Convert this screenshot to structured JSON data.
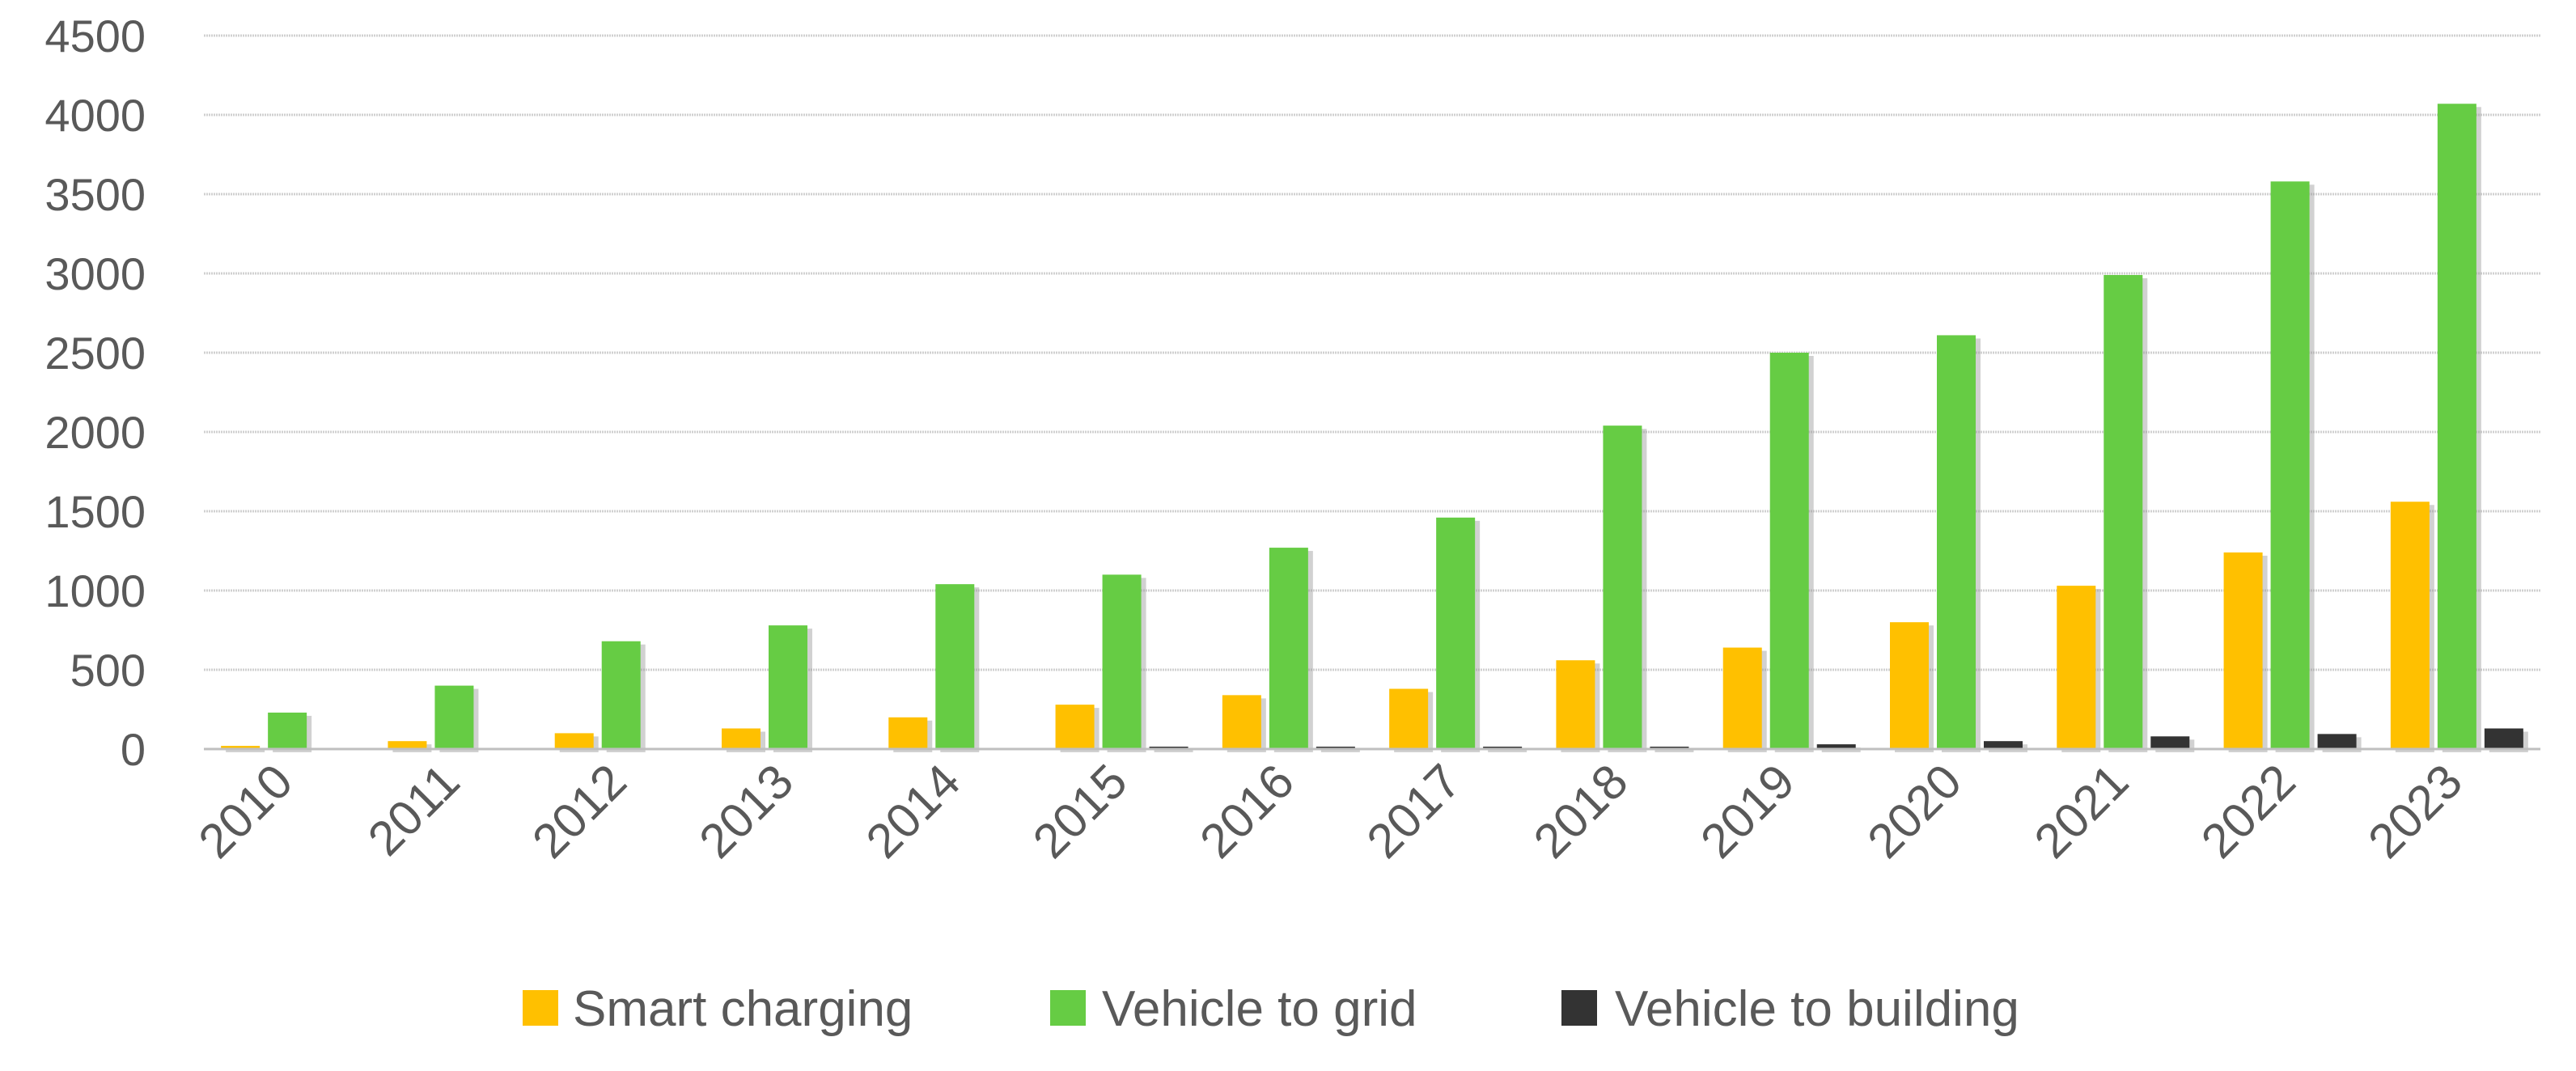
{
  "chart_data": {
    "type": "bar",
    "title": "",
    "xlabel": "",
    "ylabel": "",
    "ylim": [
      0,
      4500
    ],
    "yticks": [
      0,
      500,
      1000,
      1500,
      2000,
      2500,
      3000,
      3500,
      4000,
      4500
    ],
    "grid": true,
    "legend_position": "bottom",
    "categories": [
      "2010",
      "2011",
      "2012",
      "2013",
      "2014",
      "2015",
      "2016",
      "2017",
      "2018",
      "2019",
      "2020",
      "2021",
      "2022",
      "2023"
    ],
    "series": [
      {
        "name": "Smart charging",
        "color": "#FFC000",
        "values": [
          20,
          50,
          100,
          130,
          200,
          280,
          340,
          380,
          560,
          640,
          800,
          1030,
          1240,
          1560
        ]
      },
      {
        "name": "Vehicle to grid",
        "color": "#66CC44",
        "values": [
          230,
          400,
          680,
          780,
          1040,
          1100,
          1270,
          1460,
          2040,
          2500,
          2610,
          2990,
          3580,
          4070
        ]
      },
      {
        "name": "Vehicle to building",
        "color": "#333333",
        "values": [
          0,
          0,
          0,
          0,
          0,
          15,
          15,
          15,
          15,
          30,
          50,
          80,
          95,
          130
        ]
      }
    ]
  }
}
